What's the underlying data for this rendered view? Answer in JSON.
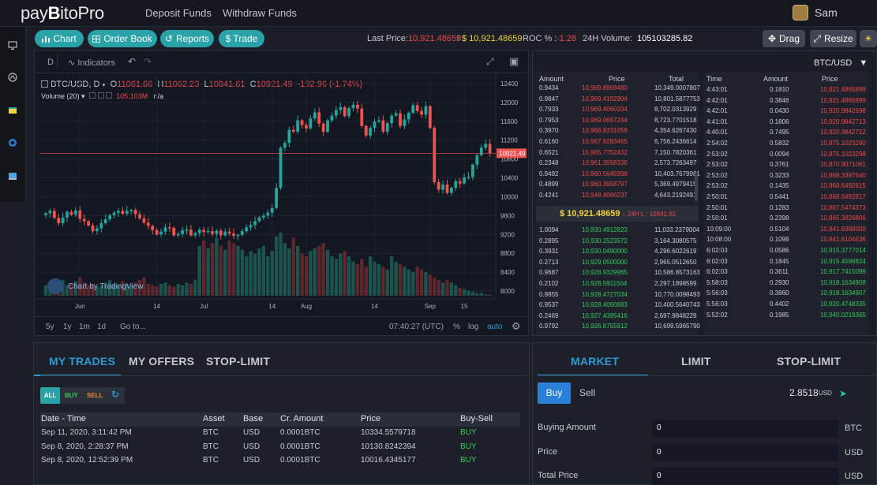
{
  "header": {
    "logo_pre": "pay",
    "logo_b": "B",
    "logo_post": "itoPro",
    "nav": [
      "Deposit Funds",
      "Withdraw Funds"
    ],
    "user": "Sam"
  },
  "toolbar": {
    "buttons": [
      "Chart",
      "Order Book",
      "Reports",
      "$ Trade"
    ],
    "last_price_label": "Last Price:",
    "last_price_red": "10,921.48659",
    "slash": "/",
    "last_price_yellow": "$ 10,921.48659",
    "roc_label": "ROC % :",
    "roc": "-1.28",
    "vol_label": "24H Volume:",
    "vol": "105103285.82",
    "drag": "Drag",
    "resize": "Resize"
  },
  "chart": {
    "interval": "D",
    "indicators": "Indicators",
    "symbol": "BTC/USD, D",
    "o_label": "O",
    "o": "11061.66",
    "h_label": "H",
    "h": "11062.23",
    "l_label": "L",
    "l": "10841.61",
    "c_label": "C",
    "c": "10921.49",
    "change": "-192.96 (-1.74%)",
    "volume_label": "Volume (20)",
    "volume_value": "105.103M",
    "volume_na": "n/a",
    "price_tag": "10921.49",
    "watermark": "Chart by TradingView",
    "time": "07:40:27 (UTC)",
    "pct": "%",
    "log": "log",
    "auto": "auto",
    "goto": "Go to...",
    "ranges": [
      "5y",
      "1y",
      "1m",
      "1d"
    ]
  },
  "chart_data": {
    "type": "candlestick",
    "symbol": "BTC/USD",
    "interval": "D",
    "x_ticks": [
      "Jun",
      "14",
      "Jul",
      "14",
      "Aug",
      "14",
      "Sep",
      "15"
    ],
    "y_ticks": [
      12400,
      12000,
      11600,
      11200,
      10800,
      10400,
      10000,
      9600,
      9200,
      8800,
      8400,
      8000
    ],
    "ylim": [
      7900,
      12550
    ],
    "last": 10921.49,
    "closes": [
      9650,
      9700,
      9550,
      9440,
      9560,
      9680,
      9620,
      9710,
      9530,
      9480,
      9390,
      9270,
      9330,
      9440,
      9520,
      9610,
      9660,
      9700,
      9640,
      9700,
      9720,
      9630,
      9540,
      9450,
      9380,
      9290,
      9200,
      9260,
      9350,
      9340,
      9180,
      9210,
      9290,
      9300,
      9180,
      9230,
      9300,
      9250,
      9270,
      9210,
      9280,
      9180,
      9260,
      9220,
      9170,
      9190,
      9270,
      9350,
      9400,
      9480,
      9560,
      9600,
      9660,
      9760,
      10190,
      11040,
      11140,
      11420,
      11380,
      11620,
      11520,
      11450,
      11660,
      11790,
      11550,
      11380,
      11620,
      11720,
      11840,
      11900,
      11710,
      11880,
      11950,
      11870,
      11500,
      11300,
      11460,
      11590,
      11620,
      11380,
      11560,
      11720,
      11770,
      11500,
      11640,
      11780,
      11940,
      11820,
      11740,
      11920,
      11460,
      10310,
      10150,
      10260,
      10080,
      10190,
      10330,
      10280,
      10410,
      10420,
      10680,
      10880,
      11040,
      11120,
      10920
    ],
    "volumes": [
      8,
      9,
      7,
      10,
      12,
      8,
      9,
      11,
      14,
      10,
      8,
      9,
      7,
      8,
      10,
      12,
      9,
      8,
      11,
      9,
      8,
      10,
      12,
      14,
      9,
      8,
      7,
      9,
      10,
      8,
      7,
      9,
      8,
      10,
      9,
      12,
      38,
      42,
      36,
      40,
      44,
      38,
      35,
      42,
      40,
      38,
      35,
      30,
      34,
      32,
      36,
      38,
      30,
      34,
      45,
      48,
      40,
      36,
      44,
      38,
      32,
      30,
      34,
      36,
      38,
      40,
      35,
      30,
      28,
      32,
      34,
      30,
      26,
      24,
      28,
      22,
      30,
      26,
      24,
      22,
      20,
      30,
      26,
      24,
      22,
      20,
      18,
      22,
      20,
      18,
      16,
      14,
      12,
      10,
      12,
      10,
      8,
      6,
      5,
      4,
      3,
      2,
      2,
      1,
      1
    ],
    "volume_ylim": [
      0,
      75
    ]
  },
  "orderbook": {
    "pair": "BTC/USD",
    "col_amount": "Amount",
    "col_price": "Price",
    "col_total": "Total",
    "asks": [
      [
        "0.9434",
        "10,969.8969480",
        "10,349.0007807"
      ],
      [
        "0.9847",
        "10,969.4192904",
        "10,801.5877753"
      ],
      [
        "0.7933",
        "10,969.4060334",
        "8,702.0313929"
      ],
      [
        "0.7953",
        "10,969.0697244",
        "8,723.7701518"
      ],
      [
        "0.3970",
        "10,968.8331058",
        "4,354.6267430"
      ],
      [
        "0.6160",
        "10,967.9283465",
        "6,756.2436614"
      ],
      [
        "0.6521",
        "10,965.7752432",
        "7,150.7820361"
      ],
      [
        "0.2348",
        "10,961.3558336",
        "2,573.7263497"
      ],
      [
        "0.9492",
        "10,960.5645998",
        "10,403.7679981"
      ],
      [
        "0.4899",
        "10,960.3958797",
        "5,369.4979415"
      ],
      [
        "0.4241",
        "10,948.4066237",
        "4,643.2192491"
      ]
    ],
    "mid_price": "$ 10,921.48659",
    "mid_change": "24H L : 10841.61",
    "bids": [
      [
        "1.0094",
        "10,930.4912823",
        "11,033.2379004"
      ],
      [
        "0.2895",
        "10,930.2523572",
        "3,164.3080575"
      ],
      [
        "0.3931",
        "10,930.0490000",
        "4,296.6022619"
      ],
      [
        "0.2713",
        "10,929.0500000",
        "2,965.0512650"
      ],
      [
        "0.9687",
        "10,928.9329965",
        "10,586.8573163"
      ],
      [
        "0.2102",
        "10,928.5911504",
        "2,297.1898599"
      ],
      [
        "0.9855",
        "10,928.4727034",
        "10,770.0098493"
      ],
      [
        "0.9537",
        "10,928.4060883",
        "10,400.5640743"
      ],
      [
        "0.2469",
        "10,927.4395416",
        "2,697.9848229"
      ],
      [
        "0.9792",
        "10,926.8755912",
        "10,699.5965790"
      ]
    ]
  },
  "trades": {
    "col_time": "Time",
    "col_amount": "Amount",
    "col_price": "Price",
    "rows": [
      [
        "4:43:01",
        "0.1810",
        "10,921.4865899",
        "r"
      ],
      [
        "4:42:01",
        "0.3846",
        "10,921.4865899",
        "r"
      ],
      [
        "4:42:01",
        "0.0430",
        "10,920.9842698",
        "r"
      ],
      [
        "4:41:01",
        "0.1806",
        "10,920.9842713",
        "r"
      ],
      [
        "4:40:01",
        "0.7495",
        "10,920.9842712",
        "r"
      ],
      [
        "2:54:02",
        "0.5832",
        "10,875.1023290",
        "r"
      ],
      [
        "2:53:02",
        "0.0094",
        "10,875.1023298",
        "r"
      ],
      [
        "2:53:02",
        "0.3761",
        "10,870.9071061",
        "r"
      ],
      [
        "2:53:02",
        "0.3233",
        "10,868.3397640",
        "r"
      ],
      [
        "2:53:02",
        "0.1435",
        "10,868.6492815",
        "r"
      ],
      [
        "2:50:01",
        "0.5441",
        "10,868.6492817",
        "r"
      ],
      [
        "2:50:01",
        "0.1283",
        "10,867.5474373",
        "r"
      ],
      [
        "2:50:01",
        "0.2398",
        "10,865.3826806",
        "r"
      ],
      [
        "10:09:00",
        "0.5104",
        "10,841.8388000",
        "r"
      ],
      [
        "10:08:00",
        "0.1098",
        "10,841.6104536",
        "r"
      ],
      [
        "6:02:03",
        "0.0586",
        "10,915.3777014",
        "g"
      ],
      [
        "6:02:03",
        "0.1845",
        "10,915.4596824",
        "g"
      ],
      [
        "6:02:03",
        "0.3611",
        "10,917.7415098",
        "g"
      ],
      [
        "5:58:03",
        "0.2930",
        "10,918.1634908",
        "g"
      ],
      [
        "5:56:03",
        "0.3860",
        "10,918.1634907",
        "g"
      ],
      [
        "5:56:03",
        "0.4402",
        "10,920.4748335",
        "g"
      ],
      [
        "5:52:02",
        "0.1985",
        "10,940.0219365",
        "g"
      ]
    ]
  },
  "mytrades": {
    "tabs": [
      "MY TRADES",
      "MY OFFERS",
      "STOP-LIMIT"
    ],
    "filters": [
      "ALL",
      "BUY",
      "SELL"
    ],
    "columns": [
      "Date - Time",
      "Asset",
      "Base",
      "Cr. Amount",
      "Price",
      "Buy-Sell"
    ],
    "rows": [
      [
        "Sep 11, 2020, 3:11:42 PM",
        "BTC",
        "USD",
        "0.0001BTC",
        "10334.5579718",
        "BUY"
      ],
      [
        "Sep 8, 2020, 2:28:37 PM",
        "BTC",
        "USD",
        "0.0001BTC",
        "10130.8242394",
        "BUY"
      ],
      [
        "Sep 8, 2020, 12:52:39 PM",
        "BTC",
        "USD",
        "0.0001BTC",
        "10016.4345177",
        "BUY"
      ]
    ]
  },
  "order": {
    "tabs": [
      "MARKET",
      "LIMIT",
      "STOP-LIMIT"
    ],
    "buy": "Buy",
    "sell": "Sell",
    "balance": "2.8518",
    "balance_unit": "USD",
    "fields": [
      {
        "label": "Buying Amount",
        "value": "0",
        "unit": "BTC"
      },
      {
        "label": "Price",
        "value": "0",
        "unit": "USD"
      },
      {
        "label": "Total Price",
        "value": "0",
        "unit": "USD"
      }
    ]
  },
  "colors": {
    "accent": "#2aa3a8",
    "up": "#26a69a",
    "down": "#ef5350",
    "buy": "#33c95a",
    "sell": "#ef4848"
  }
}
